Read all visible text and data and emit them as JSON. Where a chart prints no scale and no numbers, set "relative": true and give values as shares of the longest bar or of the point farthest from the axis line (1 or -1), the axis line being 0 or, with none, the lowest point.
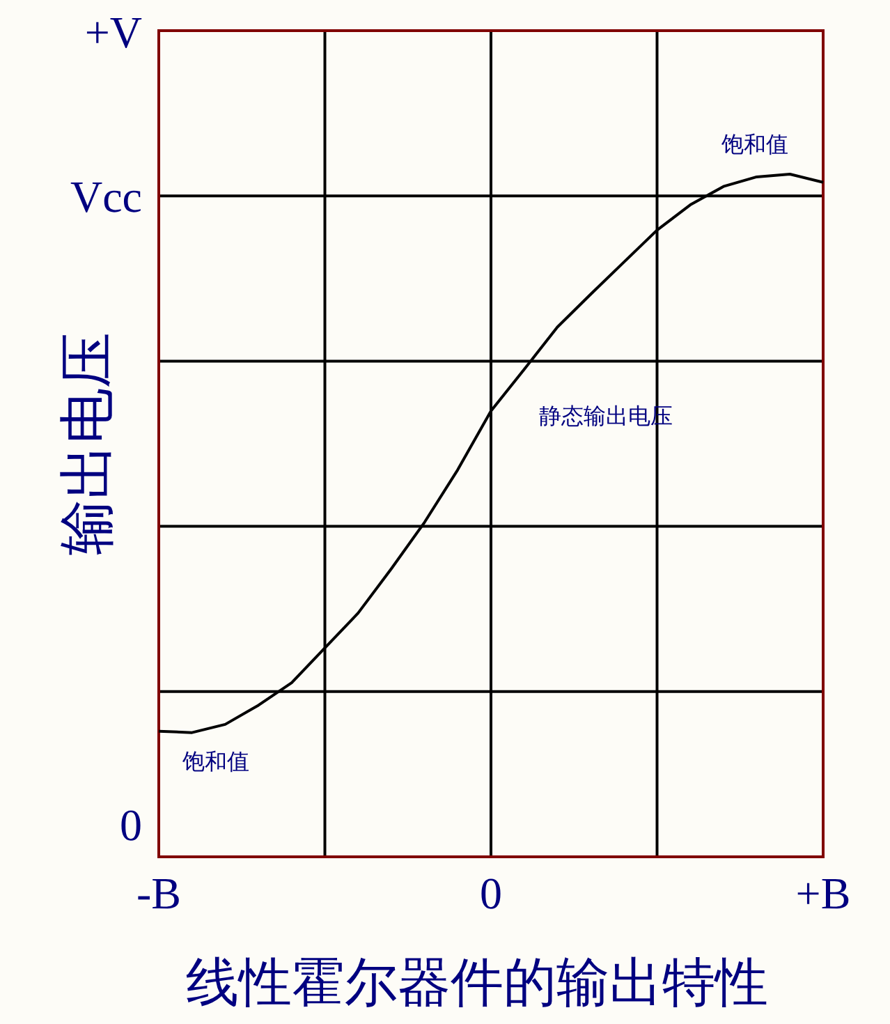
{
  "chart_data": {
    "type": "line",
    "title": "线性霍尔器件的输出特性",
    "ylabel": "输出电压",
    "relative": true,
    "grid": true,
    "categories": [
      "-B",
      null,
      null,
      null,
      null,
      null,
      null,
      null,
      null,
      null,
      "0",
      null,
      null,
      null,
      null,
      null,
      null,
      null,
      null,
      null,
      "+B"
    ],
    "series": [
      {
        "color": "#000000",
        "values": [
          0.184,
          0.182,
          0.194,
          0.222,
          0.255,
          0.306,
          0.357,
          0.422,
          0.49,
          0.567,
          0.653,
          0.714,
          0.776,
          0.824,
          0.871,
          0.918,
          0.955,
          0.982,
          0.996,
          1.0,
          0.988
        ]
      }
    ],
    "annotations": [
      "+V",
      "Vcc",
      "0",
      "饱和值",
      "静态输出电压",
      "饱和值"
    ]
  }
}
